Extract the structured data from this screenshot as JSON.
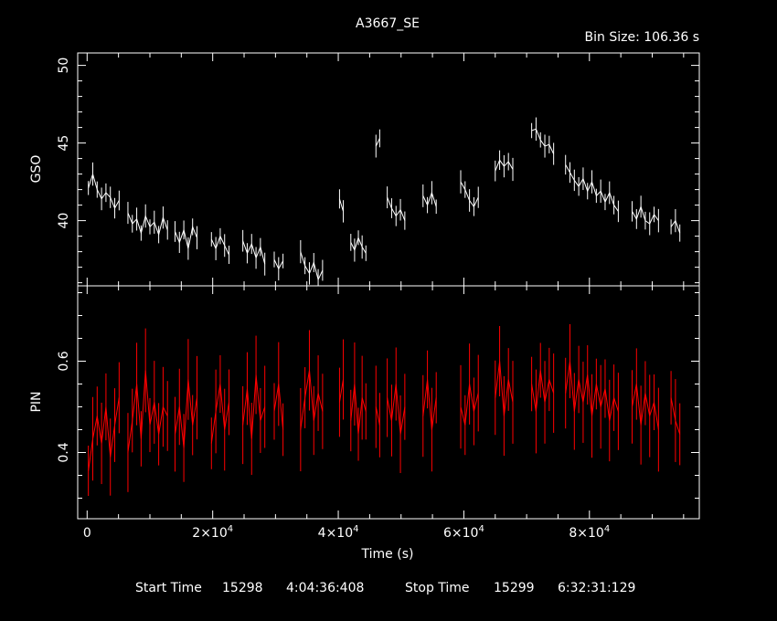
{
  "title": "A3667_SE",
  "bin_size": "Bin Size: 106.36 s",
  "footer": {
    "start_label": "Start Time",
    "start_day": "15298",
    "start_time": "4:04:36:408",
    "stop_label": "Stop Time",
    "stop_day": "15299",
    "stop_time": "6:32:31:129"
  },
  "chart_data": [
    {
      "type": "line",
      "panel": "top",
      "ylabel": "GSO",
      "xlabel": "",
      "color": "#ffffff",
      "xlim": [
        -1500,
        97500
      ],
      "ylim": [
        35.8,
        50.8
      ],
      "y_ticks": [
        40,
        45,
        50
      ],
      "x_ticks": [
        0,
        20000,
        40000,
        60000,
        80000
      ],
      "segments": [
        {
          "x": [
            200,
            900,
            1600,
            2300,
            3000,
            3700,
            4400,
            5100
          ],
          "y": [
            42.1,
            43.0,
            42.0,
            41.4,
            41.8,
            41.5,
            40.8,
            41.3
          ]
        },
        {
          "x": [
            6500,
            7200,
            7900,
            8600,
            9300,
            10000,
            10700,
            11400,
            12100,
            12800
          ],
          "y": [
            40.5,
            39.8,
            40.1,
            39.2,
            40.3,
            39.6,
            39.9,
            39.1,
            40.2,
            39.4
          ]
        },
        {
          "x": [
            14000,
            14700,
            15400,
            16100,
            16800,
            17500
          ],
          "y": [
            39.3,
            38.6,
            39.4,
            38.2,
            39.6,
            38.9
          ]
        },
        {
          "x": [
            19800,
            20500,
            21200,
            21900,
            22600
          ],
          "y": [
            38.8,
            38.2,
            39.0,
            38.4,
            37.8
          ]
        },
        {
          "x": [
            24800,
            25500,
            26200,
            26900,
            27600,
            28300
          ],
          "y": [
            38.7,
            37.9,
            38.5,
            37.6,
            38.3,
            37.2
          ]
        },
        {
          "x": [
            29800,
            30500,
            31200
          ],
          "y": [
            37.5,
            36.9,
            37.4
          ]
        },
        {
          "x": [
            34000,
            34700,
            35400,
            36100,
            36800,
            37500
          ],
          "y": [
            38.0,
            37.1,
            36.6,
            37.3,
            36.2,
            36.8
          ]
        },
        {
          "x": [
            40200,
            40800
          ],
          "y": [
            41.4,
            40.6
          ]
        },
        {
          "x": [
            42000,
            42600,
            43200,
            43800,
            44400
          ],
          "y": [
            38.6,
            38.1,
            38.9,
            38.3,
            37.9
          ]
        },
        {
          "x": [
            46000,
            46600
          ],
          "y": [
            44.8,
            45.3
          ]
        },
        {
          "x": [
            47800,
            48500,
            49200,
            49900,
            50600
          ],
          "y": [
            41.5,
            40.8,
            40.3,
            40.7,
            40.0
          ]
        },
        {
          "x": [
            53500,
            54200,
            54900,
            55600
          ],
          "y": [
            41.6,
            41.0,
            41.8,
            40.9
          ]
        },
        {
          "x": [
            59500,
            60200,
            60900,
            61600,
            62300
          ],
          "y": [
            42.5,
            42.0,
            41.3,
            40.9,
            41.5
          ]
        },
        {
          "x": [
            65000,
            65700,
            66400,
            67100,
            67800
          ],
          "y": [
            43.2,
            43.9,
            43.5,
            43.8,
            43.3
          ]
        },
        {
          "x": [
            70800,
            71500,
            72200,
            72900,
            73600,
            74300
          ],
          "y": [
            45.8,
            45.9,
            45.2,
            44.8,
            44.9,
            44.3
          ]
        },
        {
          "x": [
            76200,
            76900,
            77600,
            78300,
            79000,
            79700,
            80400,
            81100,
            81800,
            82500,
            83200,
            83900,
            84600
          ],
          "y": [
            43.6,
            43.1,
            42.6,
            42.2,
            42.7,
            41.9,
            42.5,
            41.6,
            41.9,
            41.2,
            41.8,
            41.0,
            40.6
          ]
        },
        {
          "x": [
            86800,
            87500,
            88200,
            88900,
            89600,
            90300,
            91000
          ],
          "y": [
            40.6,
            40.1,
            40.9,
            40.0,
            39.8,
            40.4,
            40.0
          ]
        },
        {
          "x": [
            93000,
            93700,
            94400
          ],
          "y": [
            39.6,
            40.0,
            39.2
          ]
        }
      ]
    },
    {
      "type": "line",
      "panel": "bottom",
      "ylabel": "PIN",
      "xlabel": "Time (s)",
      "color": "#ff0000",
      "xlim": [
        -1500,
        97500
      ],
      "ylim": [
        0.255,
        0.765
      ],
      "y_ticks": [
        0.4,
        0.6
      ],
      "x_ticks": [
        0,
        20000,
        40000,
        60000,
        80000
      ],
      "x_ticklabels": [
        "0",
        "2×10^4",
        "4×10^4",
        "6×10^4",
        "8×10^4"
      ],
      "segments": [
        {
          "x": [
            200,
            900,
            1600,
            2300,
            3000,
            3700,
            4400,
            5100
          ],
          "y": [
            0.36,
            0.43,
            0.48,
            0.42,
            0.5,
            0.39,
            0.46,
            0.52
          ]
        },
        {
          "x": [
            6500,
            7200,
            7900,
            8600,
            9300,
            10000,
            10700,
            11400,
            12100,
            12800
          ],
          "y": [
            0.4,
            0.47,
            0.55,
            0.43,
            0.58,
            0.46,
            0.51,
            0.44,
            0.5,
            0.48
          ]
        },
        {
          "x": [
            14000,
            14700,
            15400,
            16100,
            16800,
            17500
          ],
          "y": [
            0.44,
            0.5,
            0.41,
            0.56,
            0.46,
            0.52
          ]
        },
        {
          "x": [
            19800,
            20500,
            21200,
            21900,
            22600
          ],
          "y": [
            0.42,
            0.49,
            0.55,
            0.45,
            0.51
          ]
        },
        {
          "x": [
            24800,
            25500,
            26200,
            26900,
            27600,
            28300
          ],
          "y": [
            0.46,
            0.54,
            0.43,
            0.57,
            0.47,
            0.5
          ]
        },
        {
          "x": [
            29800,
            30500,
            31200
          ],
          "y": [
            0.49,
            0.55,
            0.45
          ]
        },
        {
          "x": [
            34000,
            34700,
            35400,
            36100,
            36800,
            37500
          ],
          "y": [
            0.45,
            0.52,
            0.58,
            0.47,
            0.53,
            0.49
          ]
        },
        {
          "x": [
            40200,
            40800
          ],
          "y": [
            0.51,
            0.56
          ]
        },
        {
          "x": [
            42000,
            42600,
            43200,
            43800,
            44400
          ],
          "y": [
            0.47,
            0.55,
            0.44,
            0.52,
            0.49
          ]
        },
        {
          "x": [
            46000,
            46600
          ],
          "y": [
            0.5,
            0.46
          ]
        },
        {
          "x": [
            47800,
            48500,
            49200,
            49900,
            50600
          ],
          "y": [
            0.52,
            0.47,
            0.55,
            0.44,
            0.5
          ]
        },
        {
          "x": [
            53500,
            54200,
            54900,
            55600
          ],
          "y": [
            0.48,
            0.56,
            0.45,
            0.52
          ]
        },
        {
          "x": [
            59500,
            60200,
            60900,
            61600,
            62300
          ],
          "y": [
            0.5,
            0.46,
            0.55,
            0.49,
            0.53
          ]
        },
        {
          "x": [
            65000,
            65700,
            66400,
            67100,
            67800
          ],
          "y": [
            0.52,
            0.6,
            0.48,
            0.56,
            0.51
          ]
        },
        {
          "x": [
            70800,
            71500,
            72200,
            72900,
            73600,
            74300
          ],
          "y": [
            0.55,
            0.49,
            0.58,
            0.51,
            0.56,
            0.53
          ]
        },
        {
          "x": [
            76200,
            76900,
            77600,
            78300,
            79000,
            79700,
            80400,
            81100,
            81800,
            82500,
            83200,
            83900,
            84600
          ],
          "y": [
            0.53,
            0.6,
            0.49,
            0.56,
            0.51,
            0.57,
            0.48,
            0.55,
            0.5,
            0.54,
            0.47,
            0.52,
            0.49
          ]
        },
        {
          "x": [
            86800,
            87500,
            88200,
            88900,
            89600,
            90300,
            91000
          ],
          "y": [
            0.5,
            0.55,
            0.46,
            0.53,
            0.48,
            0.51,
            0.45
          ]
        },
        {
          "x": [
            93000,
            93700,
            94400
          ],
          "y": [
            0.52,
            0.47,
            0.44
          ]
        }
      ]
    }
  ]
}
